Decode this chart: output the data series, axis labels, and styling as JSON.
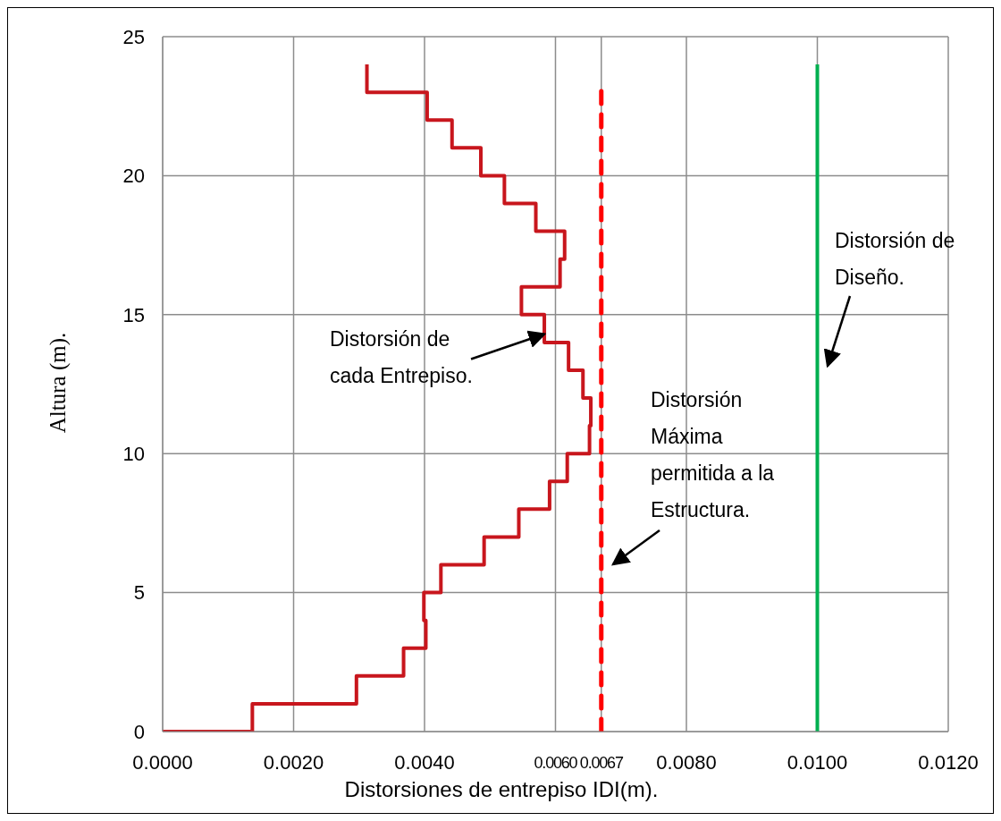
{
  "chart_data": {
    "type": "line",
    "xlabel": "Distorsiones de entrepiso IDI(m).",
    "ylabel": "Altura (m).",
    "xlim": [
      0,
      0.012
    ],
    "xticks": [
      {
        "value": 0,
        "label": "0.0000"
      },
      {
        "value": 0.002,
        "label": "0.0020"
      },
      {
        "value": 0.004,
        "label": "0.0040"
      },
      {
        "value": 0.006,
        "label": "0.0060"
      },
      {
        "value": 0.0067,
        "label": "0.0067"
      },
      {
        "value": 0.008,
        "label": "0.0080"
      },
      {
        "value": 0.01,
        "label": "0.0100"
      },
      {
        "value": 0.012,
        "label": "0.0120"
      }
    ],
    "ylim": [
      0,
      25
    ],
    "yticks": [
      0,
      5,
      10,
      15,
      20,
      25
    ],
    "grid": true,
    "legend": false,
    "marker": "none",
    "series": [
      {
        "color": "#c8161d",
        "line_style": "solid",
        "x": [
          0,
          0.00137,
          0.00137,
          0.00296,
          0.00296,
          0.00368,
          0.00368,
          0.00402,
          0.00402,
          0.00399,
          0.00399,
          0.00425,
          0.00425,
          0.00491,
          0.00491,
          0.00544,
          0.00544,
          0.00591,
          0.00591,
          0.00618,
          0.00618,
          0.00652,
          0.00652,
          0.00654,
          0.00654,
          0.00642,
          0.00642,
          0.0062,
          0.0062,
          0.00583,
          0.00583,
          0.00548,
          0.00548,
          0.00607,
          0.00607,
          0.00614,
          0.00614,
          0.0057,
          0.0057,
          0.00522,
          0.00522,
          0.00486,
          0.00486,
          0.00442,
          0.00442,
          0.00404,
          0.00404,
          0.00312,
          0.00312
        ],
        "values": [
          0,
          0,
          1,
          1,
          2,
          2,
          3,
          3,
          4,
          4,
          5,
          5,
          6,
          6,
          7,
          7,
          8,
          8,
          9,
          9,
          10,
          10,
          11,
          11,
          12,
          12,
          13,
          13,
          14,
          14,
          15,
          15,
          16,
          16,
          17,
          17,
          18,
          18,
          19,
          19,
          20,
          20,
          21,
          21,
          22,
          22,
          23,
          23,
          24
        ]
      },
      {
        "color": "#ff0000",
        "line_style": "dashed",
        "x": [
          0.0067,
          0.0067
        ],
        "values": [
          0,
          23.2
        ]
      },
      {
        "color": "#00b050",
        "line_style": "solid",
        "x": [
          0.01,
          0.01
        ],
        "values": [
          0,
          24
        ]
      }
    ],
    "annotations": [
      {
        "text": "Distorsión de cada Entrepiso.",
        "x": 0.00583,
        "y": 14.3
      },
      "Distorsión Máxima permitida a la Estructura.",
      "Distorsión de Diseño."
    ]
  }
}
